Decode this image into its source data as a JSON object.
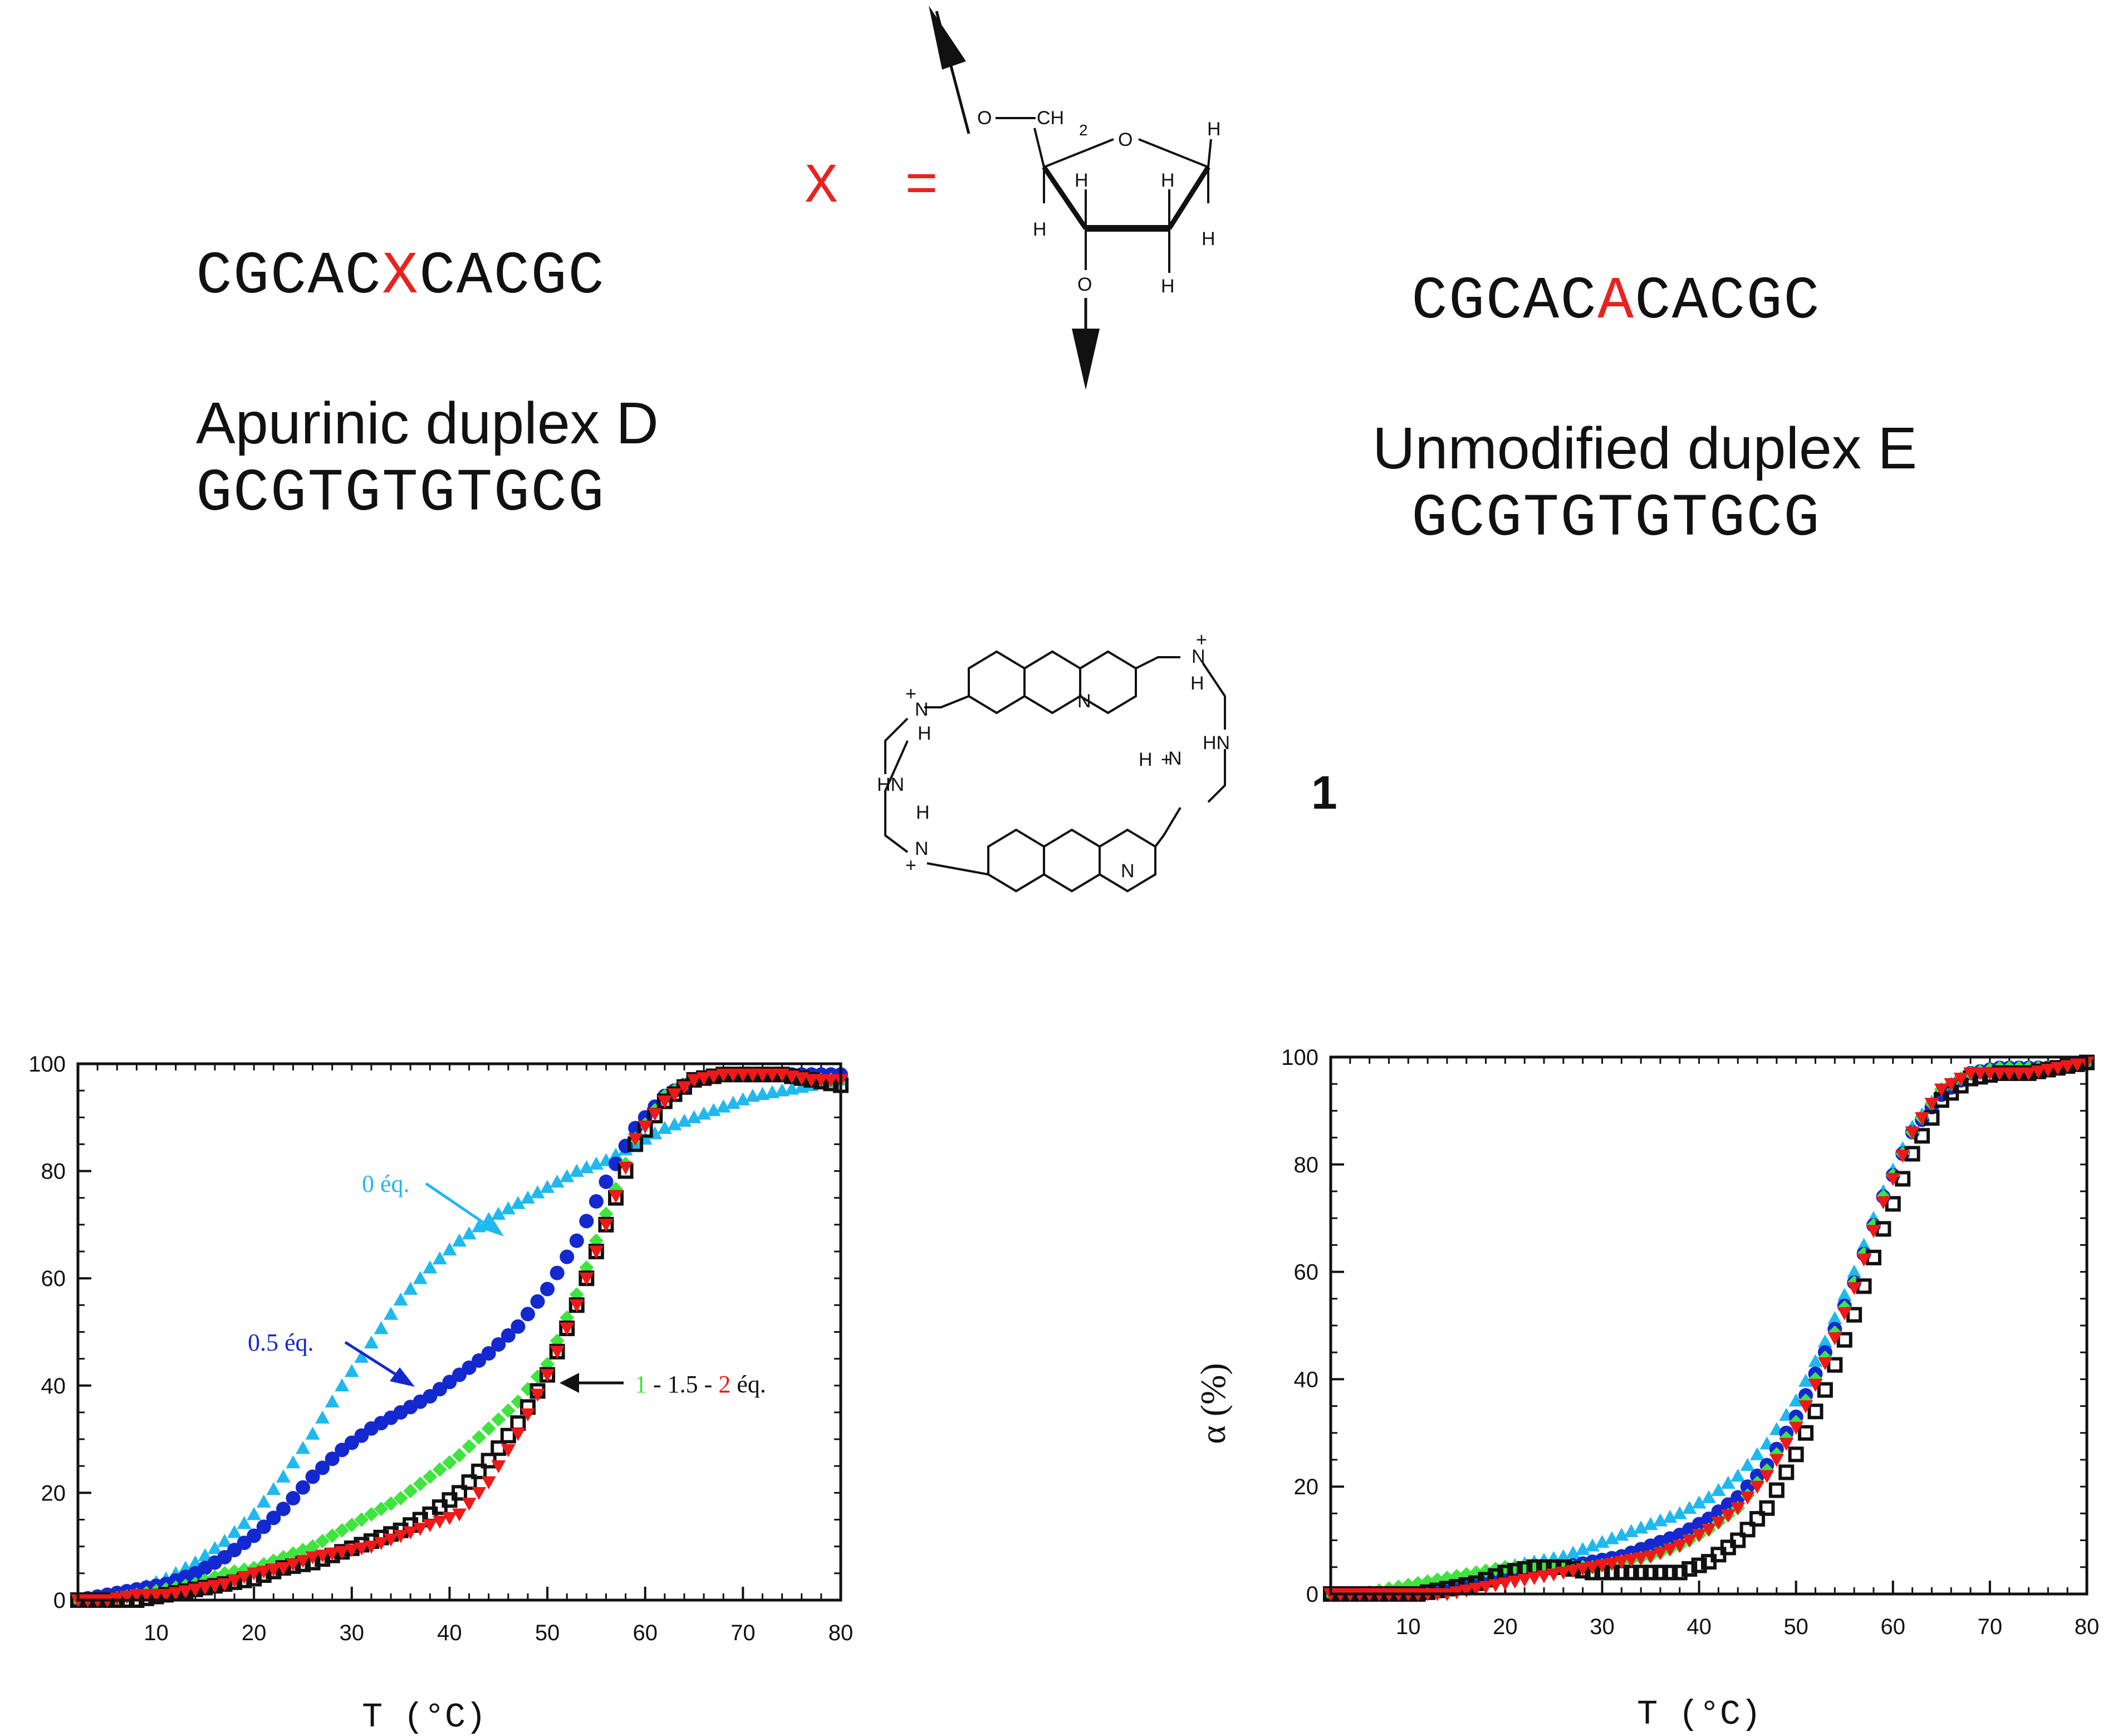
{
  "top": {
    "duplexD": {
      "strand1_pre": "CGCAC",
      "strand1_mod": "X",
      "strand1_post": "CACGC",
      "strand2": "GCGTGTGTGCG",
      "label": "Apurinic duplex D"
    },
    "duplexE": {
      "strand1_pre": "CGCAC",
      "strand1_mod": "A",
      "strand1_post": "CACGC",
      "strand2": "GCGTGTGTGCG",
      "label": "Unmodified duplex E"
    },
    "x_equals": "X  =",
    "sugar_atoms": {
      "o1": "O",
      "ch2": "CH",
      "ch2_sub": "2",
      "ring_o": "O",
      "h": "H",
      "o2": "O"
    },
    "compound": {
      "number": "1",
      "atoms": {
        "n": "N",
        "h2": "H",
        "h2_sub": "2",
        "hn": "HN",
        "plus": "+"
      }
    }
  },
  "chart_data": [
    {
      "type": "scatter",
      "name": "apurinic-duplex-D-melting",
      "xlabel": "T  (°C)",
      "ylabel": "",
      "xlim": [
        2,
        80
      ],
      "ylim": [
        0,
        100
      ],
      "xticks": [
        10,
        20,
        30,
        40,
        50,
        60,
        70,
        80
      ],
      "yticks": [
        0,
        20,
        40,
        60,
        80,
        100
      ],
      "series": [
        {
          "name": "0 éq.",
          "color": "#1fb9ef",
          "marker": "triangle-up",
          "x": [
            2,
            5,
            8,
            11,
            14,
            17,
            20,
            23,
            26,
            29,
            32,
            35,
            38,
            41,
            44,
            47,
            50,
            53,
            56,
            59,
            62,
            65,
            68,
            71,
            74,
            77,
            80
          ],
          "y": [
            0,
            1,
            2,
            4,
            7,
            11,
            16,
            23,
            31,
            40,
            48,
            56,
            62,
            67,
            71,
            74,
            77,
            80,
            82,
            85,
            88,
            90,
            92,
            94,
            95,
            96,
            97
          ]
        },
        {
          "name": "0.5 éq.",
          "color": "#1428cf",
          "marker": "circle",
          "x": [
            2,
            5,
            8,
            11,
            14,
            17,
            20,
            23,
            26,
            29,
            32,
            35,
            38,
            41,
            44,
            47,
            50,
            53,
            56,
            59,
            62,
            65,
            68,
            71,
            74,
            77,
            80
          ],
          "y": [
            0,
            1,
            2,
            3,
            5,
            8,
            12,
            17,
            23,
            28,
            32,
            35,
            38,
            42,
            46,
            51,
            58,
            67,
            78,
            88,
            94,
            97,
            98,
            98,
            98,
            98,
            98
          ]
        },
        {
          "name": "1 éq.",
          "color": "#3fe43f",
          "marker": "diamond",
          "x": [
            2,
            5,
            8,
            11,
            14,
            17,
            20,
            23,
            26,
            29,
            32,
            35,
            38,
            41,
            44,
            47,
            50,
            53,
            56,
            59,
            62,
            65,
            68,
            71,
            74,
            77,
            80
          ],
          "y": [
            0,
            0,
            1,
            2,
            3,
            5,
            6,
            8,
            10,
            13,
            16,
            19,
            23,
            27,
            32,
            37,
            44,
            57,
            72,
            86,
            94,
            97,
            98,
            98,
            98,
            97,
            97
          ]
        },
        {
          "name": "1.5 éq.",
          "color": "#111111",
          "marker": "square-open",
          "x": [
            2,
            5,
            8,
            11,
            14,
            17,
            20,
            23,
            26,
            29,
            32,
            35,
            38,
            41,
            44,
            47,
            50,
            53,
            56,
            59,
            62,
            65,
            68,
            71,
            74,
            77,
            80
          ],
          "y": [
            0,
            0,
            0,
            1,
            2,
            3,
            4,
            6,
            7,
            9,
            11,
            13,
            16,
            20,
            26,
            33,
            42,
            55,
            70,
            85,
            93,
            97,
            98,
            98,
            98,
            97,
            96
          ]
        },
        {
          "name": "2 éq.",
          "color": "#f01818",
          "marker": "triangle-down",
          "x": [
            2,
            5,
            8,
            11,
            14,
            17,
            20,
            23,
            26,
            29,
            32,
            35,
            38,
            41,
            44,
            47,
            50,
            53,
            56,
            59,
            62,
            65,
            68,
            71,
            74,
            77,
            80
          ],
          "y": [
            0,
            0,
            1,
            1,
            2,
            3,
            5,
            6,
            8,
            9,
            10,
            12,
            14,
            16,
            22,
            31,
            42,
            55,
            70,
            86,
            93,
            97,
            98,
            98,
            98,
            97,
            97
          ]
        }
      ],
      "annotations": {
        "a0": {
          "text": "0 éq.",
          "color": "#1fb9ef"
        },
        "a05": {
          "text": "0.5 éq.",
          "color": "#1428cf"
        },
        "a1": {
          "n1": "1",
          "sep1": " - 1.5 - ",
          "n2": "2",
          "suffix": " éq.",
          "c1": "#3fe43f",
          "csep": "#111111",
          "c2": "#f01818"
        }
      }
    },
    {
      "type": "scatter",
      "name": "unmodified-duplex-E-melting",
      "xlabel": "T  (°C)",
      "ylabel": "α (%)",
      "xlim": [
        2,
        80
      ],
      "ylim": [
        0,
        100
      ],
      "xticks": [
        10,
        20,
        30,
        40,
        50,
        60,
        70,
        80
      ],
      "yticks": [
        0,
        20,
        40,
        60,
        80,
        100
      ],
      "series": [
        {
          "name": "0 éq.",
          "color": "#1fb9ef",
          "marker": "triangle-up",
          "x": [
            2,
            5,
            8,
            11,
            14,
            17,
            20,
            23,
            26,
            29,
            32,
            35,
            38,
            41,
            44,
            47,
            50,
            53,
            56,
            59,
            62,
            65,
            68,
            71,
            74,
            77,
            80
          ],
          "y": [
            0,
            0,
            1,
            2,
            3,
            4,
            5,
            6,
            7,
            9,
            11,
            13,
            15,
            18,
            22,
            28,
            36,
            47,
            60,
            75,
            87,
            94,
            97,
            98,
            98,
            98,
            99
          ]
        },
        {
          "name": "0.5 éq.",
          "color": "#1428cf",
          "marker": "circle",
          "x": [
            2,
            5,
            8,
            11,
            14,
            17,
            20,
            23,
            26,
            29,
            32,
            35,
            38,
            41,
            44,
            47,
            50,
            53,
            56,
            59,
            62,
            65,
            68,
            71,
            74,
            77,
            80
          ],
          "y": [
            0,
            0,
            0,
            1,
            2,
            3,
            4,
            5,
            5,
            6,
            7,
            9,
            11,
            14,
            18,
            24,
            33,
            45,
            58,
            74,
            86,
            93,
            97,
            98,
            98,
            98,
            99
          ]
        },
        {
          "name": "1 éq.",
          "color": "#3fe43f",
          "marker": "diamond",
          "x": [
            2,
            5,
            8,
            11,
            14,
            17,
            20,
            23,
            26,
            29,
            32,
            35,
            38,
            41,
            44,
            47,
            50,
            53,
            56,
            59,
            62,
            65,
            68,
            71,
            74,
            77,
            80
          ],
          "y": [
            0,
            0,
            1,
            2,
            3,
            4,
            5,
            5,
            5,
            5,
            6,
            7,
            9,
            12,
            16,
            23,
            32,
            44,
            58,
            74,
            86,
            94,
            97,
            98,
            98,
            98,
            99
          ]
        },
        {
          "name": "1.5 éq.",
          "color": "#111111",
          "marker": "square-open",
          "x": [
            2,
            5,
            8,
            11,
            14,
            17,
            20,
            23,
            26,
            29,
            32,
            35,
            38,
            41,
            44,
            47,
            50,
            53,
            56,
            59,
            62,
            65,
            68,
            71,
            74,
            77,
            80
          ],
          "y": [
            0,
            0,
            0,
            0,
            1,
            2,
            4,
            5,
            5,
            4,
            4,
            4,
            4,
            6,
            10,
            16,
            26,
            38,
            52,
            68,
            82,
            92,
            96,
            97,
            97,
            98,
            99
          ]
        },
        {
          "name": "2 éq.",
          "color": "#f01818",
          "marker": "triangle-down",
          "x": [
            2,
            5,
            8,
            11,
            14,
            17,
            20,
            23,
            26,
            29,
            32,
            35,
            38,
            41,
            44,
            47,
            50,
            53,
            56,
            59,
            62,
            65,
            68,
            71,
            74,
            77,
            80
          ],
          "y": [
            0,
            0,
            0,
            0,
            0,
            1,
            2,
            3,
            4,
            5,
            6,
            7,
            9,
            12,
            16,
            22,
            31,
            43,
            57,
            73,
            86,
            94,
            97,
            97,
            97,
            98,
            99
          ]
        }
      ]
    }
  ]
}
